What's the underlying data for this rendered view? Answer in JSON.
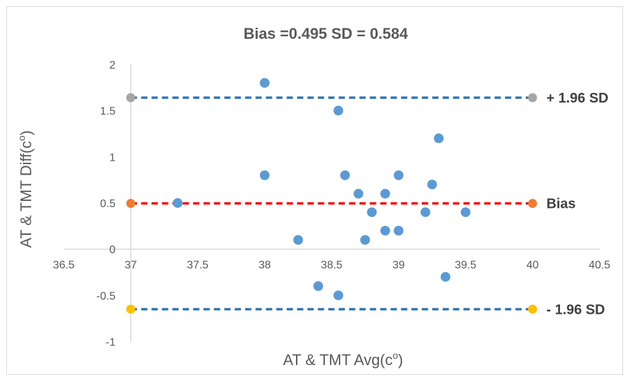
{
  "chart_data": {
    "type": "scatter",
    "title": "Bias =0.495  SD = 0.584",
    "xlabel": "AT & TMT Avg(c",
    "xlabel_sup": "o",
    "xlabel_end": ")",
    "ylabel": "AT & TMT  Diff(c",
    "ylabel_sup": "o",
    "ylabel_end": ")",
    "xlim": [
      36.5,
      40.5
    ],
    "ylim": [
      -1,
      2
    ],
    "x_ticks": [
      "36.5",
      "37",
      "37.5",
      "38",
      "38.5",
      "39",
      "39.5",
      "40",
      "40.5"
    ],
    "y_ticks": [
      "-1",
      "-0.5",
      "0",
      "0.5",
      "1",
      "1.5",
      "2"
    ],
    "grid": false,
    "points": [
      {
        "x": 37.35,
        "y": 0.5
      },
      {
        "x": 38.0,
        "y": 1.8
      },
      {
        "x": 38.0,
        "y": 0.8
      },
      {
        "x": 38.25,
        "y": 0.1
      },
      {
        "x": 38.4,
        "y": -0.4
      },
      {
        "x": 38.55,
        "y": 1.5
      },
      {
        "x": 38.55,
        "y": -0.5
      },
      {
        "x": 38.6,
        "y": 0.8
      },
      {
        "x": 38.7,
        "y": 0.6
      },
      {
        "x": 38.75,
        "y": 0.1
      },
      {
        "x": 38.8,
        "y": 0.4
      },
      {
        "x": 38.9,
        "y": 0.6
      },
      {
        "x": 38.9,
        "y": 0.2
      },
      {
        "x": 39.0,
        "y": 0.8
      },
      {
        "x": 39.0,
        "y": 0.2
      },
      {
        "x": 39.2,
        "y": 0.4
      },
      {
        "x": 39.25,
        "y": 0.7
      },
      {
        "x": 39.3,
        "y": 1.2
      },
      {
        "x": 39.35,
        "y": -0.3
      },
      {
        "x": 39.5,
        "y": 0.4
      }
    ],
    "reference_lines": [
      {
        "label": "+ 1.96 SD",
        "y": 1.64,
        "x_start": 37,
        "x_end": 40,
        "line_color": "#2E75B6",
        "marker_color": "#A5A5A5"
      },
      {
        "label": "Bias",
        "y": 0.495,
        "x_start": 37,
        "x_end": 40,
        "line_color": "#FF0000",
        "marker_color": "#ED7D31"
      },
      {
        "label": "- 1.96 SD",
        "y": -0.65,
        "x_start": 37,
        "x_end": 40,
        "line_color": "#2E75B6",
        "marker_color": "#FFC000"
      }
    ],
    "point_color": "#5B9BD5",
    "axis_color": "#D9D9D9"
  }
}
